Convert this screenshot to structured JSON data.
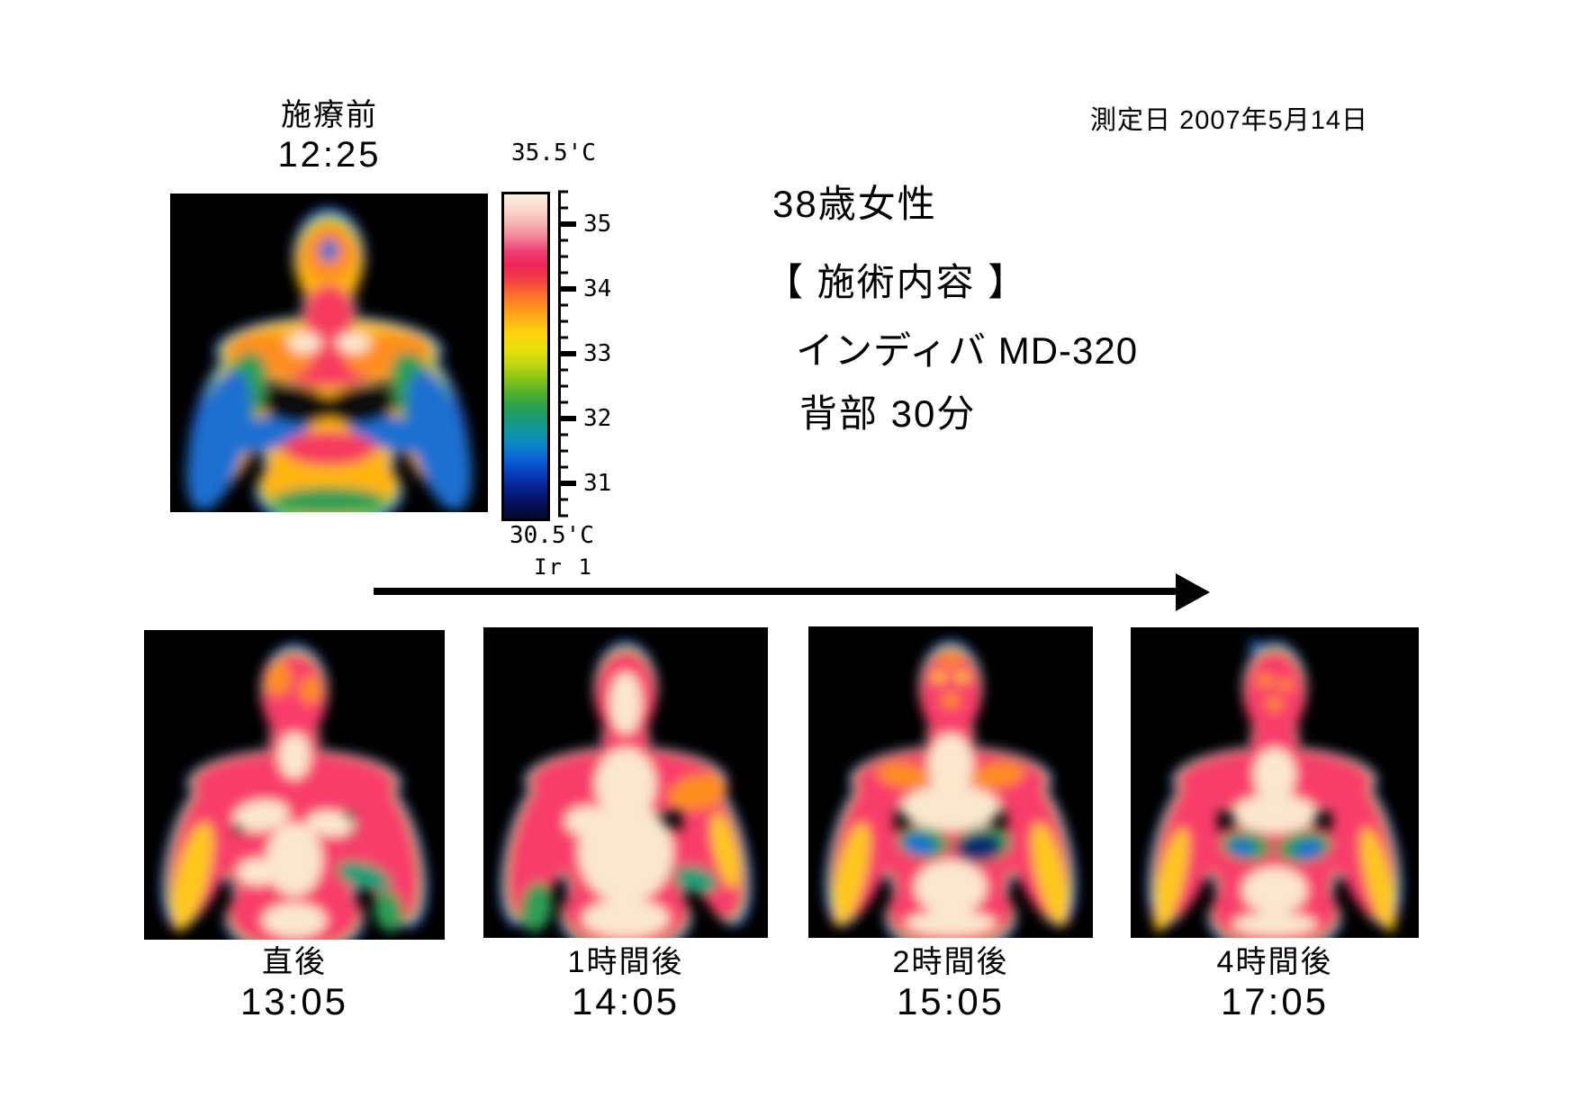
{
  "header": {
    "measurement_date": "測定日  2007年5月14日"
  },
  "pre": {
    "label": "施療前",
    "time": "12:25"
  },
  "patient_info": {
    "age_sex": "38歳女性",
    "section_title": "【 施術内容 】",
    "device": "インディバ MD-320",
    "area_duration": "背部  30分"
  },
  "scale": {
    "max_label": "35.5'C",
    "min_label": "30.5'C",
    "sensor_label": "Ir 1",
    "ticks": [
      "35",
      "34",
      "33",
      "32",
      "31"
    ],
    "gradient": [
      "#fdf0e0",
      "#fbd9cc",
      "#f8b8b4",
      "#f4849a",
      "#f04076",
      "#ee2458",
      "#f23d45",
      "#fa6a2e",
      "#ff921c",
      "#ffb713",
      "#fbd60e",
      "#e8e00c",
      "#c0d90e",
      "#8cc61a",
      "#55b22a",
      "#2aa24c",
      "#189a7c",
      "#0f93ac",
      "#0c7fd0",
      "#0a5ad4",
      "#0736b4",
      "#051f86",
      "#030f58",
      "#02082e"
    ]
  },
  "timeline": {
    "items": [
      {
        "label": "直後",
        "time": "13:05"
      },
      {
        "label": "1時間後",
        "time": "14:05"
      },
      {
        "label": "2時間後",
        "time": "15:05"
      },
      {
        "label": "4時間後",
        "time": "17:05"
      }
    ]
  },
  "thermal_colors": {
    "image_bg": "#000000",
    "edge": "#2553e0",
    "edge2": "#85d414",
    "body_pre": "#ffb50d",
    "body_post": "#f83c6a",
    "hot": "#f63a5e",
    "core": "#fbe7cd",
    "orange": "#ff8d1f",
    "yellow": "#ffc81e",
    "green": "#2f9e55",
    "teal": "#1f9e78",
    "blue": "#1e6fd0",
    "navy": "#0c2a70",
    "black": "#070707"
  }
}
